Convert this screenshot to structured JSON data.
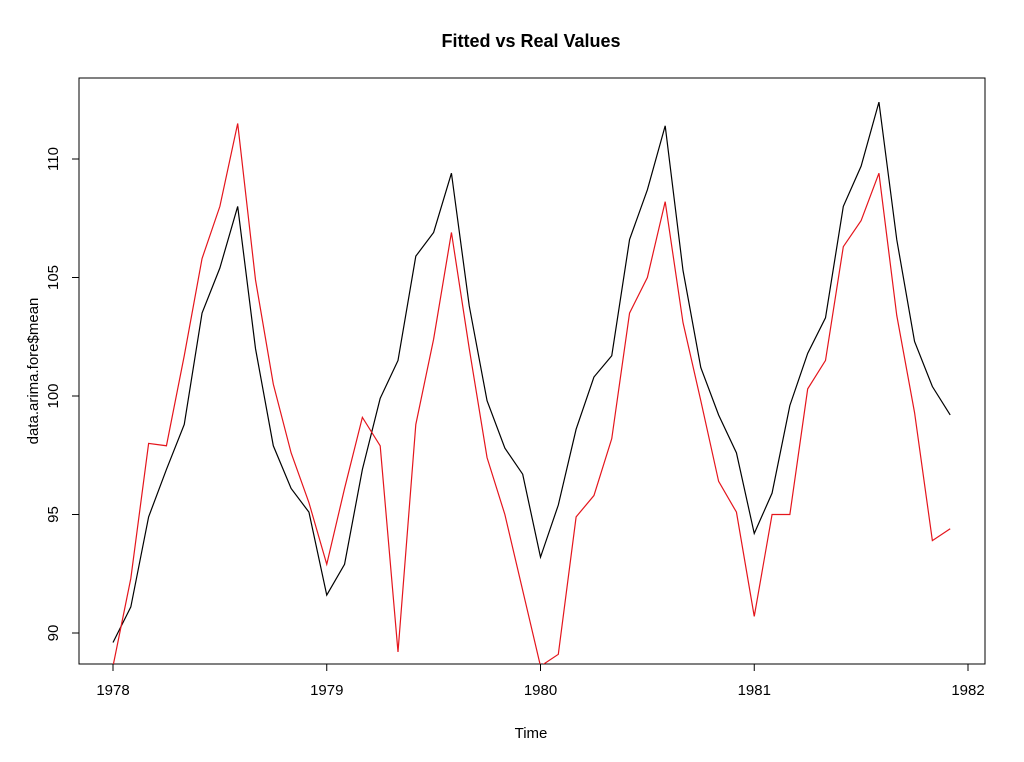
{
  "chart_data": {
    "type": "line",
    "title": "Fitted vs Real Values",
    "xlabel": "Time",
    "ylabel": "data.arima.fore$mean",
    "xlim": [
      1978,
      1982
    ],
    "ylim": [
      88.7,
      113
    ],
    "x_ticks": [
      "1978",
      "1979",
      "1980",
      "1981",
      "1982"
    ],
    "y_ticks": [
      "90",
      "95",
      "100",
      "105",
      "110"
    ],
    "grid": false,
    "legend": "none",
    "series": [
      {
        "color": "#000000",
        "x_start": 1978,
        "x_step": 0.0833333,
        "values": [
          89.6,
          91.1,
          94.9,
          96.9,
          98.8,
          103.5,
          105.4,
          108.0,
          102.0,
          97.9,
          96.1,
          95.1,
          91.6,
          92.9,
          96.9,
          99.9,
          101.5,
          105.9,
          106.9,
          109.4,
          103.8,
          99.8,
          97.8,
          96.7,
          93.2,
          95.4,
          98.6,
          100.8,
          101.7,
          106.6,
          108.7,
          111.4,
          105.3,
          101.2,
          99.2,
          97.6,
          94.2,
          95.9,
          99.6,
          101.8,
          103.3,
          108.0,
          109.7,
          112.4,
          106.6,
          102.3,
          100.4,
          99.2
        ]
      },
      {
        "color": "#e4151c",
        "x_start": 1978,
        "x_step": 0.0833333,
        "values": [
          88.6,
          92.3,
          98.0,
          97.9,
          101.7,
          105.8,
          108.0,
          111.5,
          104.9,
          100.5,
          97.6,
          95.5,
          92.9,
          96.1,
          99.1,
          97.9,
          89.2,
          98.8,
          102.4,
          106.9,
          102.0,
          97.4,
          95.0,
          91.8,
          88.6,
          89.1,
          94.9,
          95.8,
          98.2,
          103.5,
          105.0,
          108.2,
          103.1,
          99.8,
          96.4,
          95.1,
          90.7,
          95.0,
          95.0,
          100.3,
          101.5,
          106.3,
          107.4,
          109.4,
          103.4,
          99.3,
          93.9,
          94.4
        ]
      }
    ]
  }
}
